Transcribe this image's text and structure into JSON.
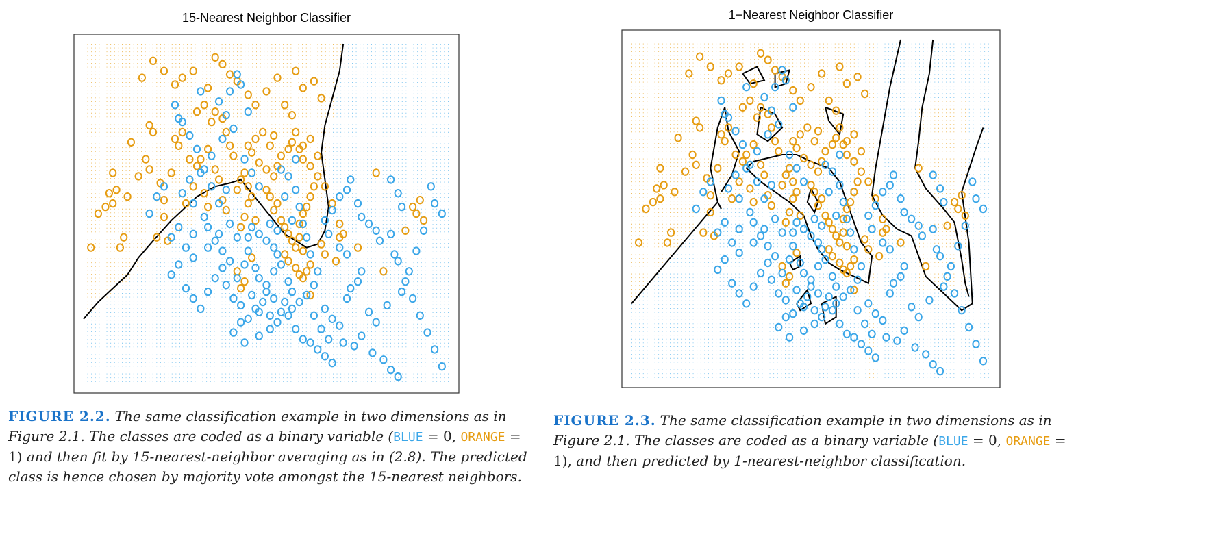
{
  "colors": {
    "orange": "#e69c11",
    "blue": "#3aa6e8",
    "label": "#1a73c9",
    "boundary": "#000000"
  },
  "left": {
    "title": "15-Nearest Neighbor Classifier",
    "caption": {
      "label": "FIGURE 2.2.",
      "text_a": "The same classification example in two dimensions as in Figure 2.1. The classes are coded as a binary variable (",
      "blue_word": "BLUE",
      "eq_a": " = 0, ",
      "orange_word": "ORANGE",
      "eq_b": " = 1)",
      "text_b": " and then fit by 15-nearest-neighbor averaging as in (2.8). The predicted class is hence chosen by majority vote amongst the 15-nearest neighbors."
    }
  },
  "right": {
    "title": "1−Nearest Neighbor Classifier",
    "caption": {
      "label": "FIGURE 2.3.",
      "text_a": "The same classification example in two dimensions as in Figure 2.1. The classes are coded as a binary variable (",
      "blue_word": "BLUE",
      "eq_a": " = 0, ",
      "orange_word": "ORANGE",
      "eq_b": " = 1),",
      "text_b": " and then predicted by 1-nearest-neighbor classification."
    }
  },
  "points": {
    "orange": [
      [
        0.04,
        0.5
      ],
      [
        0.11,
        0.43
      ],
      [
        0.09,
        0.57
      ],
      [
        0.08,
        0.62
      ],
      [
        0.06,
        0.52
      ],
      [
        0.07,
        0.56
      ],
      [
        0.12,
        0.55
      ],
      [
        0.17,
        0.66
      ],
      [
        0.18,
        0.63
      ],
      [
        0.21,
        0.59
      ],
      [
        0.22,
        0.54
      ],
      [
        0.22,
        0.49
      ],
      [
        0.23,
        0.42
      ],
      [
        0.2,
        0.43
      ],
      [
        0.13,
        0.71
      ],
      [
        0.18,
        0.76
      ],
      [
        0.19,
        0.74
      ],
      [
        0.25,
        0.72
      ],
      [
        0.28,
        0.53
      ],
      [
        0.3,
        0.58
      ],
      [
        0.31,
        0.64
      ],
      [
        0.32,
        0.66
      ],
      [
        0.34,
        0.69
      ],
      [
        0.35,
        0.77
      ],
      [
        0.36,
        0.8
      ],
      [
        0.38,
        0.78
      ],
      [
        0.39,
        0.74
      ],
      [
        0.4,
        0.7
      ],
      [
        0.41,
        0.67
      ],
      [
        0.36,
        0.63
      ],
      [
        0.37,
        0.6
      ],
      [
        0.33,
        0.56
      ],
      [
        0.34,
        0.52
      ],
      [
        0.38,
        0.54
      ],
      [
        0.39,
        0.51
      ],
      [
        0.43,
        0.46
      ],
      [
        0.44,
        0.49
      ],
      [
        0.45,
        0.53
      ],
      [
        0.46,
        0.55
      ],
      [
        0.47,
        0.48
      ],
      [
        0.42,
        0.57
      ],
      [
        0.43,
        0.6
      ],
      [
        0.44,
        0.62
      ],
      [
        0.45,
        0.58
      ],
      [
        0.5,
        0.57
      ],
      [
        0.51,
        0.55
      ],
      [
        0.52,
        0.51
      ],
      [
        0.53,
        0.53
      ],
      [
        0.54,
        0.48
      ],
      [
        0.55,
        0.46
      ],
      [
        0.56,
        0.44
      ],
      [
        0.57,
        0.42
      ],
      [
        0.58,
        0.4
      ],
      [
        0.59,
        0.43
      ],
      [
        0.55,
        0.38
      ],
      [
        0.56,
        0.36
      ],
      [
        0.58,
        0.34
      ],
      [
        0.59,
        0.32
      ],
      [
        0.6,
        0.31
      ],
      [
        0.61,
        0.33
      ],
      [
        0.62,
        0.35
      ],
      [
        0.6,
        0.39
      ],
      [
        0.59,
        0.47
      ],
      [
        0.6,
        0.5
      ],
      [
        0.61,
        0.52
      ],
      [
        0.62,
        0.55
      ],
      [
        0.63,
        0.58
      ],
      [
        0.64,
        0.61
      ],
      [
        0.62,
        0.64
      ],
      [
        0.6,
        0.66
      ],
      [
        0.6,
        0.7
      ],
      [
        0.62,
        0.72
      ],
      [
        0.64,
        0.67
      ],
      [
        0.58,
        0.74
      ],
      [
        0.56,
        0.69
      ],
      [
        0.54,
        0.67
      ],
      [
        0.53,
        0.64
      ],
      [
        0.52,
        0.61
      ],
      [
        0.5,
        0.63
      ],
      [
        0.48,
        0.65
      ],
      [
        0.46,
        0.68
      ],
      [
        0.45,
        0.7
      ],
      [
        0.47,
        0.72
      ],
      [
        0.49,
        0.74
      ],
      [
        0.66,
        0.58
      ],
      [
        0.68,
        0.53
      ],
      [
        0.7,
        0.47
      ],
      [
        0.71,
        0.44
      ],
      [
        0.65,
        0.41
      ],
      [
        0.66,
        0.38
      ],
      [
        0.62,
        0.26
      ],
      [
        0.44,
        0.3
      ],
      [
        0.43,
        0.28
      ],
      [
        0.42,
        0.33
      ],
      [
        0.46,
        0.37
      ],
      [
        0.69,
        0.36
      ],
      [
        0.7,
        0.43
      ],
      [
        0.82,
        0.33
      ],
      [
        0.8,
        0.62
      ],
      [
        0.88,
        0.45
      ],
      [
        0.9,
        0.52
      ],
      [
        0.91,
        0.5
      ],
      [
        0.92,
        0.54
      ],
      [
        0.93,
        0.48
      ],
      [
        0.25,
        0.88
      ],
      [
        0.27,
        0.9
      ],
      [
        0.3,
        0.92
      ],
      [
        0.36,
        0.96
      ],
      [
        0.38,
        0.94
      ],
      [
        0.42,
        0.89
      ],
      [
        0.45,
        0.85
      ],
      [
        0.47,
        0.82
      ],
      [
        0.4,
        0.91
      ],
      [
        0.34,
        0.87
      ],
      [
        0.33,
        0.82
      ],
      [
        0.31,
        0.8
      ],
      [
        0.5,
        0.86
      ],
      [
        0.53,
        0.9
      ],
      [
        0.58,
        0.92
      ],
      [
        0.6,
        0.87
      ],
      [
        0.63,
        0.89
      ],
      [
        0.65,
        0.84
      ],
      [
        0.55,
        0.82
      ],
      [
        0.57,
        0.79
      ],
      [
        0.22,
        0.92
      ],
      [
        0.19,
        0.95
      ],
      [
        0.16,
        0.9
      ],
      [
        0.27,
        0.74
      ],
      [
        0.26,
        0.7
      ],
      [
        0.29,
        0.66
      ],
      [
        0.24,
        0.62
      ],
      [
        0.52,
        0.73
      ],
      [
        0.51,
        0.7
      ],
      [
        0.15,
        0.61
      ],
      [
        0.1,
        0.4
      ],
      [
        0.02,
        0.4
      ],
      [
        0.08,
        0.53
      ],
      [
        0.57,
        0.71
      ],
      [
        0.59,
        0.69
      ],
      [
        0.75,
        0.4
      ]
    ],
    "blue": [
      [
        0.27,
        0.77
      ],
      [
        0.37,
        0.83
      ],
      [
        0.39,
        0.79
      ],
      [
        0.4,
        0.86
      ],
      [
        0.42,
        0.91
      ],
      [
        0.43,
        0.88
      ],
      [
        0.45,
        0.8
      ],
      [
        0.41,
        0.75
      ],
      [
        0.38,
        0.72
      ],
      [
        0.35,
        0.67
      ],
      [
        0.32,
        0.62
      ],
      [
        0.29,
        0.6
      ],
      [
        0.27,
        0.56
      ],
      [
        0.3,
        0.53
      ],
      [
        0.33,
        0.49
      ],
      [
        0.34,
        0.46
      ],
      [
        0.37,
        0.44
      ],
      [
        0.4,
        0.47
      ],
      [
        0.42,
        0.43
      ],
      [
        0.36,
        0.42
      ],
      [
        0.38,
        0.39
      ],
      [
        0.4,
        0.36
      ],
      [
        0.42,
        0.31
      ],
      [
        0.44,
        0.35
      ],
      [
        0.45,
        0.39
      ],
      [
        0.47,
        0.34
      ],
      [
        0.48,
        0.31
      ],
      [
        0.5,
        0.29
      ],
      [
        0.52,
        0.33
      ],
      [
        0.53,
        0.38
      ],
      [
        0.54,
        0.35
      ],
      [
        0.56,
        0.3
      ],
      [
        0.57,
        0.27
      ],
      [
        0.55,
        0.24
      ],
      [
        0.52,
        0.25
      ],
      [
        0.5,
        0.27
      ],
      [
        0.49,
        0.24
      ],
      [
        0.47,
        0.22
      ],
      [
        0.45,
        0.19
      ],
      [
        0.43,
        0.18
      ],
      [
        0.41,
        0.15
      ],
      [
        0.44,
        0.12
      ],
      [
        0.48,
        0.14
      ],
      [
        0.51,
        0.16
      ],
      [
        0.53,
        0.18
      ],
      [
        0.56,
        0.2
      ],
      [
        0.58,
        0.16
      ],
      [
        0.6,
        0.13
      ],
      [
        0.62,
        0.12
      ],
      [
        0.64,
        0.1
      ],
      [
        0.66,
        0.08
      ],
      [
        0.68,
        0.06
      ],
      [
        0.63,
        0.2
      ],
      [
        0.66,
        0.22
      ],
      [
        0.68,
        0.19
      ],
      [
        0.7,
        0.17
      ],
      [
        0.72,
        0.25
      ],
      [
        0.73,
        0.28
      ],
      [
        0.75,
        0.3
      ],
      [
        0.76,
        0.33
      ],
      [
        0.72,
        0.38
      ],
      [
        0.7,
        0.4
      ],
      [
        0.67,
        0.44
      ],
      [
        0.66,
        0.48
      ],
      [
        0.68,
        0.51
      ],
      [
        0.7,
        0.55
      ],
      [
        0.72,
        0.57
      ],
      [
        0.73,
        0.6
      ],
      [
        0.75,
        0.53
      ],
      [
        0.76,
        0.49
      ],
      [
        0.78,
        0.47
      ],
      [
        0.8,
        0.45
      ],
      [
        0.81,
        0.42
      ],
      [
        0.84,
        0.44
      ],
      [
        0.85,
        0.38
      ],
      [
        0.86,
        0.36
      ],
      [
        0.88,
        0.3
      ],
      [
        0.9,
        0.25
      ],
      [
        0.92,
        0.2
      ],
      [
        0.94,
        0.15
      ],
      [
        0.96,
        0.1
      ],
      [
        0.98,
        0.05
      ],
      [
        0.84,
        0.6
      ],
      [
        0.86,
        0.56
      ],
      [
        0.87,
        0.52
      ],
      [
        0.98,
        0.5
      ],
      [
        0.24,
        0.32
      ],
      [
        0.26,
        0.35
      ],
      [
        0.28,
        0.28
      ],
      [
        0.3,
        0.25
      ],
      [
        0.32,
        0.22
      ],
      [
        0.34,
        0.27
      ],
      [
        0.36,
        0.31
      ],
      [
        0.38,
        0.34
      ],
      [
        0.39,
        0.29
      ],
      [
        0.41,
        0.25
      ],
      [
        0.43,
        0.23
      ],
      [
        0.46,
        0.26
      ],
      [
        0.48,
        0.21
      ],
      [
        0.51,
        0.2
      ],
      [
        0.54,
        0.21
      ],
      [
        0.57,
        0.22
      ],
      [
        0.59,
        0.24
      ],
      [
        0.61,
        0.26
      ],
      [
        0.63,
        0.29
      ],
      [
        0.64,
        0.33
      ],
      [
        0.62,
        0.38
      ],
      [
        0.61,
        0.43
      ],
      [
        0.6,
        0.47
      ],
      [
        0.59,
        0.52
      ],
      [
        0.58,
        0.57
      ],
      [
        0.56,
        0.61
      ],
      [
        0.54,
        0.63
      ],
      [
        0.58,
        0.66
      ],
      [
        0.45,
        0.43
      ],
      [
        0.46,
        0.46
      ],
      [
        0.48,
        0.44
      ],
      [
        0.5,
        0.42
      ],
      [
        0.52,
        0.4
      ],
      [
        0.39,
        0.57
      ],
      [
        0.37,
        0.53
      ],
      [
        0.35,
        0.58
      ],
      [
        0.33,
        0.63
      ],
      [
        0.31,
        0.69
      ],
      [
        0.29,
        0.73
      ],
      [
        0.26,
        0.78
      ],
      [
        0.25,
        0.82
      ],
      [
        0.32,
        0.86
      ],
      [
        0.44,
        0.66
      ],
      [
        0.46,
        0.62
      ],
      [
        0.48,
        0.58
      ],
      [
        0.22,
        0.58
      ],
      [
        0.2,
        0.55
      ],
      [
        0.18,
        0.5
      ],
      [
        0.28,
        0.4
      ],
      [
        0.3,
        0.37
      ],
      [
        0.26,
        0.46
      ],
      [
        0.24,
        0.43
      ],
      [
        0.3,
        0.44
      ],
      [
        0.34,
        0.4
      ],
      [
        0.55,
        0.55
      ],
      [
        0.57,
        0.48
      ],
      [
        0.53,
        0.45
      ],
      [
        0.51,
        0.47
      ],
      [
        0.65,
        0.16
      ],
      [
        0.67,
        0.13
      ],
      [
        0.71,
        0.12
      ],
      [
        0.74,
        0.11
      ],
      [
        0.76,
        0.14
      ],
      [
        0.79,
        0.09
      ],
      [
        0.82,
        0.07
      ],
      [
        0.84,
        0.04
      ],
      [
        0.86,
        0.02
      ],
      [
        0.78,
        0.21
      ],
      [
        0.8,
        0.18
      ],
      [
        0.83,
        0.23
      ],
      [
        0.87,
        0.27
      ],
      [
        0.89,
        0.33
      ],
      [
        0.91,
        0.39
      ],
      [
        0.93,
        0.45
      ],
      [
        0.95,
        0.58
      ],
      [
        0.96,
        0.53
      ]
    ]
  }
}
